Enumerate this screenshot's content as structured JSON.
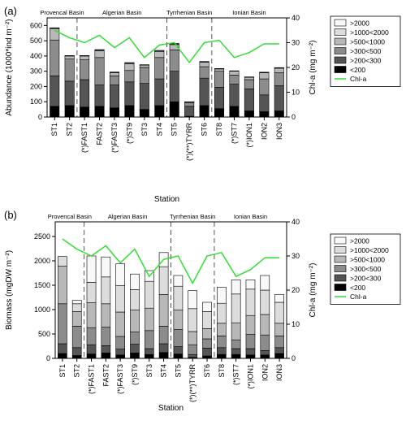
{
  "colors": {
    "gt2000": "#f8f8f8",
    "c1000_2000": "#dcdcdc",
    "c500_1000": "#b8b8b8",
    "c300_500": "#8c8c8c",
    "c200_300": "#555555",
    "lt200": "#000000",
    "chla": "#33dd33"
  },
  "chart_data": [
    {
      "type": "bar",
      "panel_label": "(a)",
      "xlabel": "Station",
      "ylabel": "Abundance (1000*ind m⁻²)",
      "y2label": "Chl-a (mg m⁻²)",
      "ylim": [
        0,
        650
      ],
      "yticks": [
        0,
        100,
        200,
        300,
        400,
        500,
        600
      ],
      "y2lim": [
        0,
        40
      ],
      "y2ticks": [
        0,
        10,
        20,
        30,
        40
      ],
      "categories": [
        "ST1",
        "ST2",
        "(*)FAST1",
        "FAST2",
        "(*)FAST3",
        "(*)ST9",
        "ST3",
        "ST4",
        "ST5",
        "(*)(**)TYRR",
        "ST6",
        "ST8",
        "(*)ST7",
        "(*)ION1",
        "ION2",
        "ION3"
      ],
      "basins": [
        {
          "label": "Provencal Basin",
          "from": 0,
          "to": 1
        },
        {
          "label": "Algerian Basin",
          "from": 2,
          "to": 7
        },
        {
          "label": "Tyrrhenian Basin",
          "from": 8,
          "to": 10
        },
        {
          "label": "Ionian Basin",
          "from": 11,
          "to": 15
        }
      ],
      "separators_after": [
        1,
        7,
        10
      ],
      "series": [
        {
          "name": "<200",
          "color_key": "lt200",
          "values": [
            70,
            75,
            65,
            70,
            60,
            75,
            50,
            75,
            100,
            5,
            75,
            55,
            70,
            40,
            35,
            40
          ]
        },
        {
          "name": ">200<300",
          "color_key": "c200_300",
          "values": [
            200,
            160,
            180,
            140,
            150,
            155,
            170,
            175,
            200,
            65,
            180,
            140,
            145,
            145,
            110,
            165
          ]
        },
        {
          "name": ">300<500",
          "color_key": "c300_500",
          "values": [
            235,
            145,
            130,
            180,
            60,
            75,
            105,
            140,
            140,
            25,
            75,
            105,
            60,
            60,
            105,
            85
          ]
        },
        {
          "name": ">500<1000",
          "color_key": "c500_1000",
          "values": [
            75,
            20,
            25,
            45,
            20,
            45,
            15,
            40,
            35,
            3,
            30,
            15,
            25,
            15,
            40,
            30
          ]
        },
        {
          "name": ">1000<2000",
          "color_key": "c1000_2000",
          "values": [
            3,
            2,
            2,
            5,
            4,
            5,
            2,
            5,
            5,
            1,
            3,
            2,
            2,
            2,
            3,
            3
          ]
        },
        {
          "name": ">2000",
          "color_key": "gt2000",
          "values": [
            2,
            1,
            1,
            2,
            1,
            2,
            1,
            2,
            2,
            1,
            1,
            1,
            1,
            1,
            1,
            1
          ]
        }
      ],
      "line": {
        "name": "Chl-a",
        "color_key": "chla",
        "values": [
          35,
          32,
          30,
          33,
          28,
          32,
          24,
          29,
          30,
          22,
          30,
          31,
          24,
          26,
          29.5,
          29.5
        ]
      },
      "legend_position": "right-top"
    },
    {
      "type": "bar",
      "panel_label": "(b)",
      "xlabel": "Station",
      "ylabel": "Biomass (mgDW m⁻²)",
      "y2label": "Chl-a (mg m⁻²)",
      "ylim": [
        0,
        2800
      ],
      "yticks": [
        0,
        500,
        1000,
        1500,
        2000,
        2500
      ],
      "y2lim": [
        0,
        40
      ],
      "y2ticks": [
        0,
        10,
        20,
        30,
        40
      ],
      "categories": [
        "ST1",
        "ST2",
        "(*)FAST1",
        "FAST2",
        "(*)FAST3",
        "(*)ST9",
        "ST3",
        "ST4",
        "ST5",
        "(*)(**)TYRR",
        "ST6",
        "ST8",
        "(*)ST7",
        "(*)ION1",
        "ION2",
        "ION3"
      ],
      "basins": [
        {
          "label": "Provencal Basin",
          "from": 0,
          "to": 1
        },
        {
          "label": "Algerian Basin",
          "from": 2,
          "to": 7
        },
        {
          "label": "Tyrrhenian Basin",
          "from": 8,
          "to": 10
        },
        {
          "label": "Ionian Basin",
          "from": 11,
          "to": 15
        }
      ],
      "separators_after": [
        1,
        7,
        10
      ],
      "series": [
        {
          "name": "<200",
          "color_key": "lt200",
          "values": [
            100,
            60,
            90,
            110,
            70,
            110,
            80,
            120,
            90,
            20,
            50,
            80,
            80,
            70,
            70,
            100
          ]
        },
        {
          "name": ">200<300",
          "color_key": "c200_300",
          "values": [
            200,
            160,
            190,
            150,
            120,
            180,
            120,
            180,
            150,
            60,
            160,
            140,
            120,
            130,
            90,
            120
          ]
        },
        {
          "name": ">300<500",
          "color_key": "c300_500",
          "values": [
            820,
            440,
            350,
            380,
            260,
            250,
            370,
            360,
            350,
            200,
            190,
            240,
            180,
            290,
            320,
            240
          ]
        },
        {
          "name": ">500<1000",
          "color_key": "c500_1000",
          "values": [
            770,
            300,
            510,
            480,
            500,
            450,
            460,
            650,
            400,
            270,
            210,
            260,
            350,
            390,
            420,
            260
          ]
        },
        {
          "name": ">1000<2000",
          "color_key": "c1000_2000",
          "values": [
            200,
            160,
            420,
            550,
            540,
            420,
            550,
            570,
            490,
            470,
            350,
            410,
            590,
            540,
            500,
            430
          ]
        },
        {
          "name": ">2000",
          "color_key": "gt2000",
          "values": [
            0,
            70,
            540,
            410,
            450,
            320,
            220,
            290,
            220,
            370,
            190,
            330,
            290,
            190,
            300,
            160
          ]
        }
      ],
      "line": {
        "name": "Chl-a",
        "color_key": "chla",
        "values": [
          35,
          32,
          30,
          33,
          28,
          32,
          24,
          29,
          30,
          22,
          30,
          31,
          24,
          26,
          29.5,
          29.5
        ]
      },
      "legend_position": "right-top"
    }
  ]
}
